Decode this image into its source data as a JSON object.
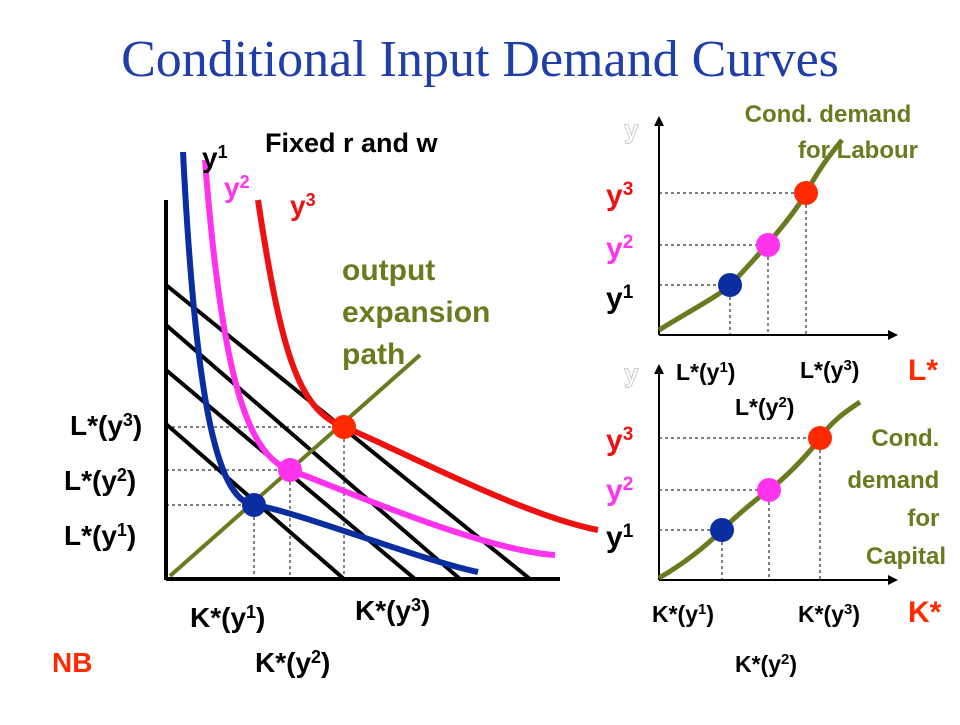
{
  "title": "Conditional Input Demand Curves",
  "colors": {
    "title": "#1f3ea8",
    "y1": "#0a2ea0",
    "y2": "#ff33ee",
    "y3": "#ee1111",
    "expansion": "#6b7a1f",
    "axis": "#000000",
    "label": "#000000",
    "capital_label": "#ff2a00",
    "caption": "#6b7a1f"
  },
  "left_panel": {
    "fixed_label": "Fixed r and w",
    "isoquant_labels": [
      {
        "base": "y",
        "sup": "1"
      },
      {
        "base": "y",
        "sup": "2"
      },
      {
        "base": "y",
        "sup": "3"
      }
    ],
    "expansion_label": [
      "output",
      "expansion",
      "path"
    ],
    "y_labels": [
      {
        "base": "L*(y",
        "sup": "3",
        "end": ")"
      },
      {
        "base": "L*(y",
        "sup": "2",
        "end": ")"
      },
      {
        "base": "L*(y",
        "sup": "1",
        "end": ")"
      }
    ],
    "x_labels": [
      {
        "base": "K*(y",
        "sup": "1",
        "end": ")"
      },
      {
        "base": "K*(y",
        "sup": "3",
        "end": ")"
      },
      {
        "base": "K*(y",
        "sup": "2",
        "end": ")"
      }
    ],
    "note": "NB"
  },
  "top_right": {
    "y_axis_label": "y",
    "caption": [
      "Cond. demand",
      "for Labour"
    ],
    "y_labels": [
      {
        "base": "y",
        "sup": "3"
      },
      {
        "base": "y",
        "sup": "2"
      },
      {
        "base": "y",
        "sup": "1"
      }
    ],
    "x_labels": [
      {
        "base": "L*(y",
        "sup": "1",
        "end": ")"
      },
      {
        "base": "L*(y",
        "sup": "3",
        "end": ")"
      },
      {
        "base": "L*(y",
        "sup": "2",
        "end": ")"
      }
    ],
    "x_axis_label": "L*"
  },
  "bottom_right": {
    "y_axis_label": "y",
    "caption": [
      "Cond.",
      "demand",
      "for",
      "Capital"
    ],
    "y_labels": [
      {
        "base": "y",
        "sup": "3"
      },
      {
        "base": "y",
        "sup": "2"
      },
      {
        "base": "y",
        "sup": "1"
      }
    ],
    "x_labels": [
      {
        "base": "K*(y",
        "sup": "1",
        "end": ")"
      },
      {
        "base": "K*(y",
        "sup": "3",
        "end": ")"
      },
      {
        "base": "K*(y",
        "sup": "2",
        "end": ")"
      }
    ],
    "x_axis_label": "K*"
  }
}
